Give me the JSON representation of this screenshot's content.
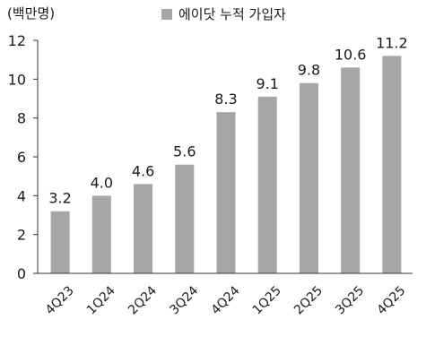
{
  "chart_data": {
    "type": "bar",
    "unit_label": "(백만명)",
    "categories": [
      "4Q23",
      "1Q24",
      "2Q24",
      "3Q24",
      "4Q24",
      "1Q25",
      "2Q25",
      "3Q25",
      "4Q25"
    ],
    "series": [
      {
        "name": "에이닷 누적 가입자",
        "values": [
          3.2,
          4.0,
          4.6,
          5.6,
          8.3,
          9.1,
          9.8,
          10.6,
          11.2
        ],
        "labels": [
          "3.2",
          "4.0",
          "4.6",
          "5.6",
          "8.3",
          "9.1",
          "9.8",
          "10.6",
          "11.2"
        ],
        "color": "#a6a6a6"
      }
    ],
    "ylim": [
      0,
      12
    ],
    "yticks": [
      0,
      2,
      4,
      6,
      8,
      10,
      12
    ],
    "grid": false,
    "legend_position": "top",
    "xlabel": "",
    "ylabel": ""
  }
}
